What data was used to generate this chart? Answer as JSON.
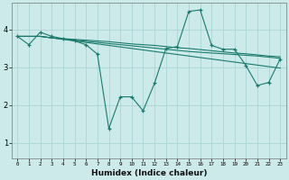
{
  "xlabel": "Humidex (Indice chaleur)",
  "bg_color": "#cceaea",
  "line_color": "#1a7a6e",
  "grid_color": "#aad4d4",
  "x_ticks": [
    0,
    1,
    2,
    3,
    4,
    5,
    6,
    7,
    8,
    9,
    10,
    11,
    12,
    13,
    14,
    15,
    16,
    17,
    18,
    19,
    20,
    21,
    22,
    23
  ],
  "y_ticks": [
    1,
    2,
    3,
    4
  ],
  "xlim": [
    -0.5,
    23.5
  ],
  "ylim": [
    0.6,
    4.7
  ],
  "zigzag": [
    3.82,
    3.6,
    3.93,
    3.82,
    3.76,
    3.7,
    3.6,
    3.35,
    1.38,
    2.22,
    2.22,
    1.85,
    2.58,
    3.5,
    3.55,
    4.48,
    4.52,
    3.58,
    3.48,
    3.48,
    3.05,
    2.52,
    2.6,
    3.22
  ],
  "line1": [
    3.82,
    3.82,
    3.82,
    3.78,
    3.76,
    3.74,
    3.72,
    3.7,
    3.68,
    3.65,
    3.62,
    3.6,
    3.58,
    3.55,
    3.52,
    3.5,
    3.47,
    3.44,
    3.41,
    3.38,
    3.36,
    3.33,
    3.3,
    3.28
  ],
  "line2": [
    3.82,
    3.82,
    3.82,
    3.78,
    3.75,
    3.72,
    3.69,
    3.66,
    3.63,
    3.6,
    3.57,
    3.54,
    3.51,
    3.48,
    3.45,
    3.42,
    3.4,
    3.38,
    3.36,
    3.34,
    3.32,
    3.3,
    3.27,
    3.24
  ],
  "line3": [
    3.82,
    3.82,
    3.82,
    3.78,
    3.74,
    3.7,
    3.66,
    3.62,
    3.58,
    3.54,
    3.5,
    3.46,
    3.42,
    3.38,
    3.34,
    3.3,
    3.26,
    3.22,
    3.18,
    3.14,
    3.1,
    3.06,
    3.02,
    2.98
  ]
}
